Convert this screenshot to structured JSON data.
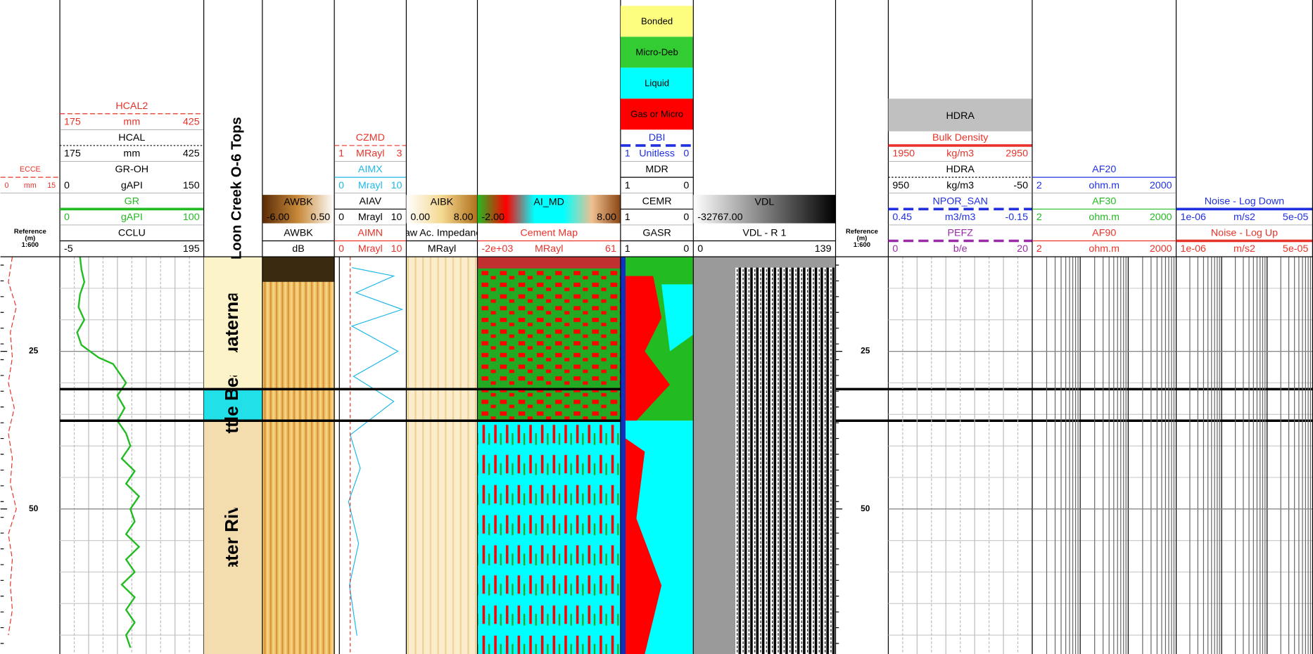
{
  "depth_range": [
    10,
    73
  ],
  "depth_ticks": [
    25,
    50
  ],
  "tracks": [
    {
      "reference": [
        "Reference",
        "(m)",
        "1:600"
      ],
      "blocks": [
        {
          "name": "ECCE",
          "min": "0",
          "unit": "mm",
          "max": "15",
          "color": "#e8332a",
          "line": "dashed",
          "small": true,
          "depths": [
            10,
            14,
            18,
            22,
            26,
            30,
            34,
            38,
            42,
            46,
            50,
            54,
            58,
            62,
            66,
            70
          ],
          "values": [
            3,
            2,
            4,
            2.5,
            3,
            2,
            3.5,
            2,
            3,
            2.5,
            4,
            2,
            3,
            2.5,
            3,
            2
          ]
        }
      ]
    },
    {
      "grid": "linear",
      "blocks": [
        {
          "name": "HCAL2",
          "min": "175",
          "unit": "mm",
          "max": "425",
          "color": "#e8332a",
          "line": "dashed"
        },
        {
          "name": "HCAL",
          "min": "175",
          "unit": "mm",
          "max": "425",
          "color": "#000000",
          "line": "dotted"
        },
        {
          "name": "GR-OH",
          "min": "0",
          "unit": "gAPI",
          "max": "150",
          "color": "#000000",
          "line": "none"
        },
        {
          "name": "GR",
          "min": "0",
          "unit": "gAPI",
          "max": "100",
          "color": "#22bb22",
          "line": "bold",
          "depths": [
            10,
            12,
            14,
            16,
            18,
            20,
            22,
            24,
            26,
            27,
            28,
            30,
            32,
            34,
            36,
            38,
            40,
            42,
            44,
            46,
            48,
            50,
            52,
            54,
            56,
            58,
            60,
            62,
            64,
            66,
            68,
            70,
            72
          ],
          "values": [
            14,
            15,
            17,
            14,
            13,
            17,
            12,
            15,
            27,
            37,
            40,
            46,
            40,
            45,
            40,
            46,
            49,
            43,
            52,
            46,
            55,
            49,
            52,
            46,
            55,
            46,
            52,
            43,
            52,
            46,
            52,
            46,
            49
          ]
        },
        {
          "name": "CCLU",
          "min": "-5",
          "max": "195",
          "color": "#000000",
          "line": "solid"
        }
      ]
    },
    {
      "title": "Loon Creek O-6 Tops",
      "formations": [
        {
          "name": "Quaternary",
          "top": 10,
          "base": 31,
          "color": "#fdf3c9"
        },
        {
          "name": "Little Bear",
          "top": 31,
          "base": 36,
          "color": "#22e0e8"
        },
        {
          "name": "Slater River",
          "top": 36,
          "base": 73,
          "color": "#f3dcae"
        }
      ]
    },
    {
      "blocks": [
        {
          "name": "AWBK",
          "min": "-6.00",
          "max": "0.50",
          "gradient": [
            "#5a2a05",
            "#c88a3a",
            "#ffffff"
          ]
        },
        {
          "name": "AWBK",
          "unit": "dB",
          "color": "#000000",
          "line": "solid"
        }
      ]
    },
    {
      "blocks": [
        {
          "name": "CZMD",
          "min": "1",
          "unit": "MRayl",
          "max": "3",
          "color": "#e8332a",
          "line": "dashed"
        },
        {
          "name": "AIMX",
          "min": "0",
          "unit": "Mrayl",
          "max": "10",
          "color": "#1fb8e8",
          "line": "solid"
        },
        {
          "name": "AIAV",
          "min": "0",
          "unit": "Mrayl",
          "max": "10",
          "color": "#000000",
          "line": "solid"
        },
        {
          "name": "AIMN",
          "min": "0",
          "unit": "Mrayl",
          "max": "10",
          "color": "#e8332a",
          "line": "solid"
        }
      ]
    },
    {
      "blocks": [
        {
          "name": "AIBK",
          "min": "0.00",
          "max": "8.00",
          "gradient": [
            "#ffffff",
            "#f5d890",
            "#b0701a"
          ]
        },
        {
          "name": "Raw Ac. Impedance",
          "unit": "MRayl",
          "color": "#000000",
          "line": "solid"
        }
      ]
    },
    {
      "blocks": [
        {
          "name": "AI_MD",
          "min": "-2.00",
          "max": "8.00",
          "gradient": [
            "#22bb22",
            "#ff0000",
            "#00ffff",
            "#00ffff",
            "#f0c090",
            "#8b4513"
          ]
        },
        {
          "name": "Cement Map",
          "min": "-2e+03",
          "unit": "MRayl",
          "max": "61",
          "color": "#e8332a",
          "line": "solid"
        }
      ]
    },
    {
      "legend": [
        {
          "label": "Bonded",
          "color": "#fdfd80"
        },
        {
          "label": "Micro-Deb",
          "color": "#33cc33"
        },
        {
          "label": "Liquid",
          "color": "#00ffff"
        },
        {
          "label": "Gas or Micro",
          "color": "#ff0000"
        }
      ],
      "blocks": [
        {
          "name": "DBI",
          "min": "1",
          "unit": "Unitless",
          "max": "0",
          "color": "#2030e0",
          "line": "bold-dashed"
        },
        {
          "name": "MDR",
          "min": "1",
          "max": "0",
          "color": "#000000",
          "line": "solid"
        },
        {
          "name": "CEMR",
          "min": "1",
          "max": "0",
          "color": "#000000",
          "line": "solid"
        },
        {
          "name": "GASR",
          "min": "1",
          "max": "0",
          "color": "#000000",
          "line": "solid"
        }
      ]
    },
    {
      "blocks": [
        {
          "name": "VDL",
          "min": "-32767.00",
          "gradient": [
            "#ffffff",
            "#000000"
          ]
        },
        {
          "name": "VDL - R 1",
          "min": "0",
          "max": "139",
          "color": "#000000",
          "line": "solid"
        }
      ]
    },
    {
      "reference": [
        "Reference",
        "(m)",
        "1:600"
      ],
      "blocks": []
    },
    {
      "grid": "linear",
      "title_box": "HDRA",
      "blocks": [
        {
          "name": "Bulk Density",
          "min": "1950",
          "unit": "kg/m3",
          "max": "2950",
          "color": "#e8332a",
          "line": "bold"
        },
        {
          "name": "HDRA",
          "min": "950",
          "unit": "kg/m3",
          "max": "-50",
          "color": "#000000",
          "line": "dotted"
        },
        {
          "name": "NPOR_SAN",
          "min": "0.45",
          "unit": "m3/m3",
          "max": "-0.15",
          "color": "#2030e0",
          "line": "bold-dashed"
        },
        {
          "name": "PEFZ",
          "min": "0",
          "unit": "b/e",
          "max": "20",
          "color": "#9a2aa8",
          "line": "bold-dashed"
        }
      ]
    },
    {
      "grid": "log",
      "blocks": [
        {
          "name": "AF20",
          "min": "2",
          "unit": "ohm.m",
          "max": "2000",
          "color": "#2030e0",
          "line": "solid"
        },
        {
          "name": "AF30",
          "min": "2",
          "unit": "ohm.m",
          "max": "2000",
          "color": "#22bb22",
          "line": "solid"
        },
        {
          "name": "AF90",
          "min": "2",
          "unit": "ohm.m",
          "max": "2000",
          "color": "#e8332a",
          "line": "solid"
        }
      ]
    },
    {
      "grid": "log",
      "blocks": [
        {
          "name": "Noise - Log Down",
          "min": "1e-06",
          "unit": "m/s2",
          "max": "5e-05",
          "color": "#2030e0",
          "line": "bold"
        },
        {
          "name": "Noise - Log Up",
          "min": "1e-06",
          "unit": "m/s2",
          "max": "5e-05",
          "color": "#e8332a",
          "line": "bold"
        }
      ]
    }
  ]
}
